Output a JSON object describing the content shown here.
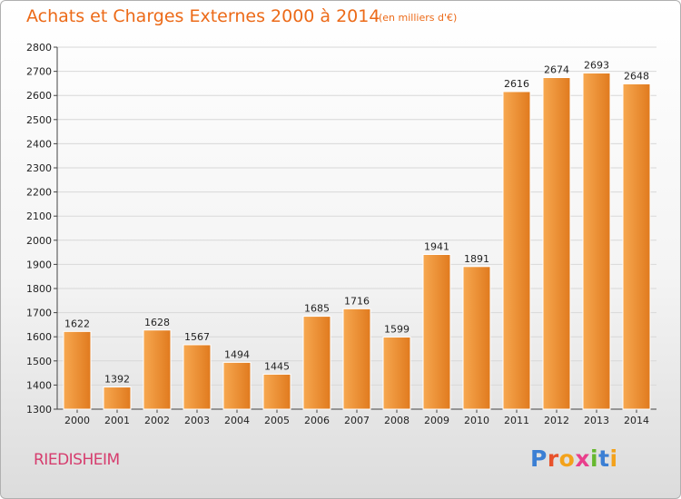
{
  "header": {
    "title": "Achats et Charges Externes 2000 à 2014",
    "subtitle": "(en milliers d'€)"
  },
  "commune": "RIEDISHEIM",
  "logo": {
    "text": "Proxiti",
    "letter_colors": [
      "#3b7fd4",
      "#e8522b",
      "#f3a21b",
      "#e93f8c",
      "#66b82f",
      "#3b7fd4",
      "#f3a21b"
    ]
  },
  "colors": {
    "bar_light": "#f7a850",
    "bar_dark": "#e07a1e",
    "title": "#ec6a18",
    "commune": "#d63d6e",
    "grid": "#d8d8d8"
  },
  "chart_data": {
    "type": "bar",
    "categories": [
      "2000",
      "2001",
      "2002",
      "2003",
      "2004",
      "2005",
      "2006",
      "2007",
      "2008",
      "2009",
      "2010",
      "2011",
      "2012",
      "2013",
      "2014"
    ],
    "values": [
      1622,
      1392,
      1628,
      1567,
      1494,
      1445,
      1685,
      1716,
      1599,
      1941,
      1891,
      2616,
      2674,
      2693,
      2648
    ],
    "ylim": [
      1300,
      2800
    ],
    "yticks": [
      1300,
      1400,
      1500,
      1600,
      1700,
      1800,
      1900,
      2000,
      2100,
      2200,
      2300,
      2400,
      2500,
      2600,
      2700,
      2800
    ],
    "grid": true,
    "xlabel": "",
    "ylabel": ""
  }
}
